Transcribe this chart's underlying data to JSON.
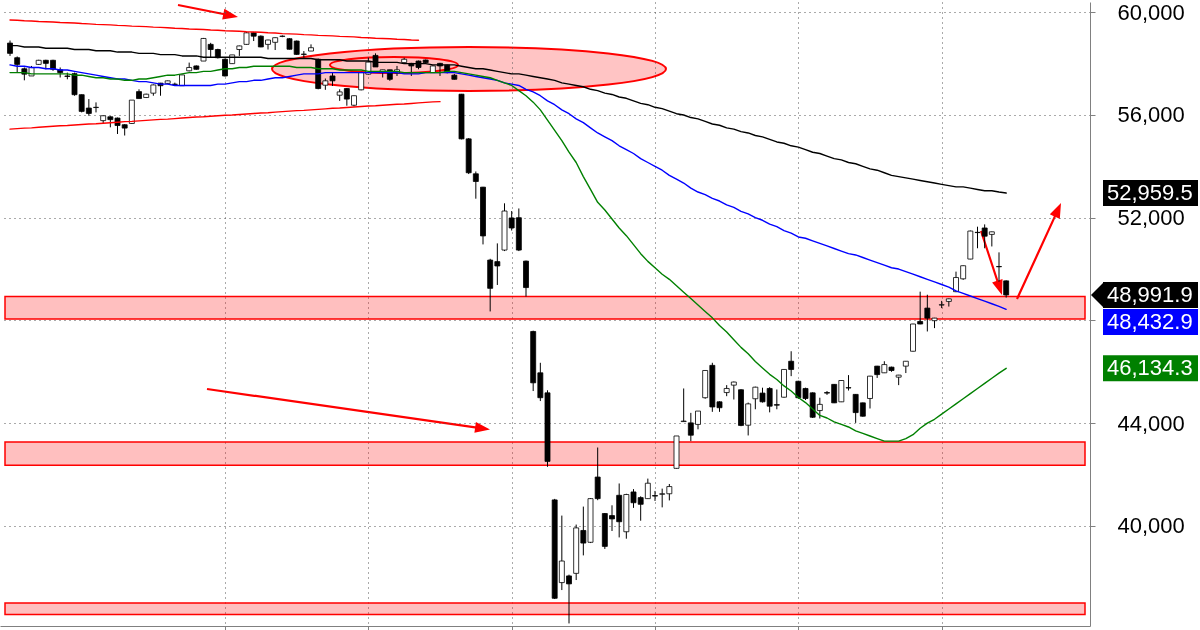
{
  "chart_data": {
    "type": "candlestick",
    "categories": [
      null,
      null,
      null,
      null,
      null,
      null,
      null,
      null,
      null,
      null,
      null,
      null,
      null,
      null,
      null,
      null,
      null,
      null,
      null,
      null,
      null,
      null,
      null,
      null,
      null,
      null,
      null,
      null,
      null,
      null,
      null,
      null,
      null,
      null,
      null,
      null,
      null,
      null,
      null,
      null,
      null,
      null,
      null,
      null,
      null,
      null,
      null,
      null,
      null,
      null,
      null,
      null,
      null,
      null,
      null,
      null,
      null,
      null,
      null,
      null,
      null,
      null,
      null,
      null,
      null,
      null,
      null,
      null,
      null,
      null,
      null,
      null,
      null,
      null,
      null,
      null,
      null,
      null,
      null,
      null,
      null,
      null,
      null,
      null,
      null,
      null,
      null,
      null,
      null,
      null,
      null,
      null,
      null,
      null,
      null,
      null,
      null,
      null,
      null,
      null,
      null,
      null,
      null,
      null,
      null,
      null,
      null,
      null,
      null,
      null,
      null,
      null,
      null,
      null,
      null,
      null,
      null,
      null,
      null,
      null,
      null,
      null,
      null,
      null,
      null,
      null,
      null,
      null,
      null,
      null,
      null,
      null,
      null,
      null,
      null,
      null,
      null,
      null,
      null,
      null
    ],
    "ohlc": [
      [
        58800,
        58900,
        58300,
        58400
      ],
      [
        58230,
        58280,
        57650,
        57970
      ],
      [
        57800,
        57850,
        57350,
        57590
      ],
      [
        57520,
        57910,
        57520,
        57845
      ],
      [
        57970,
        58150,
        57950,
        58130
      ],
      [
        58130,
        58150,
        57780,
        58010
      ],
      [
        58130,
        58150,
        57720,
        57780
      ],
      [
        57760,
        57850,
        57460,
        57650
      ],
      [
        57520,
        57650,
        57390,
        57500
      ],
      [
        57610,
        57650,
        56750,
        56790
      ],
      [
        56790,
        56800,
        56100,
        56140
      ],
      [
        56270,
        56620,
        55970,
        56060
      ],
      [
        56290,
        56490,
        56100,
        56300
      ],
      [
        55780,
        55990,
        55670,
        55970
      ],
      [
        55930,
        55950,
        55520,
        55820
      ],
      [
        55880,
        55900,
        55260,
        55590
      ],
      [
        55620,
        55640,
        55200,
        55490
      ],
      [
        55670,
        56580,
        55650,
        56580
      ],
      [
        56910,
        57000,
        56640,
        56640
      ],
      [
        56680,
        56830,
        56660,
        56810
      ],
      [
        56850,
        57190,
        56750,
        57170
      ],
      [
        57240,
        57250,
        56750,
        57140
      ],
      [
        57230,
        57340,
        57200,
        57330
      ],
      [
        57200,
        57260,
        57150,
        57190
      ],
      [
        57140,
        57570,
        57130,
        57560
      ],
      [
        57720,
        58040,
        57700,
        57850
      ],
      [
        57910,
        57930,
        57760,
        57780
      ],
      [
        58100,
        59000,
        58100,
        58980
      ],
      [
        58750,
        58810,
        58230,
        58550
      ],
      [
        58550,
        58580,
        58200,
        58230
      ],
      [
        58170,
        58200,
        57500,
        57520
      ],
      [
        58000,
        58340,
        57990,
        58340
      ],
      [
        58550,
        58700,
        58300,
        58690
      ],
      [
        58750,
        59230,
        58740,
        59200
      ],
      [
        59200,
        59230,
        58880,
        59070
      ],
      [
        59070,
        59100,
        58640,
        58650
      ],
      [
        58750,
        58930,
        58550,
        58920
      ],
      [
        58830,
        59020,
        58530,
        59010
      ],
      [
        59060,
        59100,
        59030,
        59070
      ],
      [
        58970,
        58990,
        58550,
        58560
      ],
      [
        58880,
        58900,
        58340,
        58360
      ],
      [
        58370,
        58490,
        58230,
        58360
      ],
      [
        58490,
        58750,
        58490,
        58620
      ],
      [
        58170,
        58200,
        57000,
        57030
      ],
      [
        57160,
        57420,
        56980,
        57330
      ],
      [
        57520,
        57650,
        57130,
        57330
      ],
      [
        56770,
        57000,
        56550,
        56900
      ],
      [
        57030,
        57050,
        56360,
        56620
      ],
      [
        56380,
        56760,
        56330,
        56750
      ],
      [
        56980,
        57680,
        56960,
        57650
      ],
      [
        57590,
        58230,
        57570,
        58060
      ],
      [
        58320,
        58400,
        57870,
        57870
      ],
      [
        57680,
        57760,
        57460,
        57760
      ],
      [
        57760,
        57760,
        57330,
        57390
      ],
      [
        57630,
        57910,
        57520,
        57760
      ],
      [
        58040,
        58230,
        58020,
        58170
      ],
      [
        58010,
        58030,
        57520,
        57910
      ],
      [
        58100,
        58120,
        57780,
        57850
      ],
      [
        58140,
        58160,
        58000,
        58040
      ],
      [
        57650,
        57930,
        57640,
        57910
      ],
      [
        58010,
        58030,
        57520,
        57910
      ],
      [
        57940,
        57960,
        57620,
        57650
      ],
      [
        57550,
        57600,
        57380,
        57390
      ],
      [
        56810,
        56820,
        55050,
        55070
      ],
      [
        55070,
        55100,
        53700,
        53750
      ],
      [
        53710,
        53800,
        52740,
        53410
      ],
      [
        53190,
        53200,
        50960,
        51290
      ],
      [
        50350,
        50400,
        48350,
        49250
      ],
      [
        50290,
        51000,
        49380,
        50120
      ],
      [
        50740,
        52560,
        50700,
        52260
      ],
      [
        51990,
        52260,
        51500,
        51600
      ],
      [
        52000,
        52360,
        50700,
        50740
      ],
      [
        50310,
        50330,
        48930,
        49280
      ],
      [
        47570,
        47600,
        45250,
        45570
      ],
      [
        45960,
        46350,
        44860,
        44990
      ],
      [
        45180,
        45280,
        42300,
        42510
      ],
      [
        41010,
        41050,
        37150,
        37180
      ],
      [
        37790,
        40400,
        37500,
        38630
      ],
      [
        38050,
        38100,
        36200,
        37740
      ],
      [
        38150,
        40050,
        37890,
        39920
      ],
      [
        39820,
        40750,
        38850,
        39330
      ],
      [
        39360,
        41080,
        39330,
        41060
      ],
      [
        41900,
        43050,
        41000,
        41060
      ],
      [
        40480,
        40500,
        39100,
        39200
      ],
      [
        40400,
        40800,
        39800,
        40270
      ],
      [
        41190,
        41650,
        39550,
        40160
      ],
      [
        39770,
        41250,
        39500,
        41220
      ],
      [
        41320,
        41430,
        40700,
        40900
      ],
      [
        41100,
        41150,
        40200,
        40840
      ],
      [
        41060,
        41840,
        41050,
        41660
      ],
      [
        41180,
        41360,
        40970,
        41160
      ],
      [
        41230,
        41450,
        40720,
        41250
      ],
      [
        41250,
        41630,
        40990,
        41530
      ],
      [
        42240,
        43500,
        42230,
        43500
      ],
      [
        44060,
        45350,
        44050,
        44080
      ],
      [
        44010,
        44400,
        43300,
        43530
      ],
      [
        43950,
        44470,
        43760,
        44470
      ],
      [
        44990,
        46050,
        44950,
        46050
      ],
      [
        46250,
        46350,
        44440,
        44630
      ],
      [
        44830,
        44850,
        44440,
        44600
      ],
      [
        45190,
        45480,
        45050,
        45350
      ],
      [
        45480,
        45620,
        44920,
        45600
      ],
      [
        45300,
        45320,
        43880,
        43910
      ],
      [
        43920,
        44800,
        43520,
        44750
      ],
      [
        44950,
        45420,
        44540,
        45400
      ],
      [
        45170,
        45380,
        44800,
        44830
      ],
      [
        45350,
        45400,
        44420,
        44660
      ],
      [
        44720,
        45310,
        44540,
        44700
      ],
      [
        45010,
        46100,
        44990,
        46090
      ],
      [
        46410,
        46800,
        45830,
        46090
      ],
      [
        45630,
        45650,
        44950,
        44990
      ],
      [
        45350,
        45380,
        44900,
        44960
      ],
      [
        45180,
        45200,
        44200,
        44230
      ],
      [
        44490,
        44990,
        44180,
        44730
      ],
      [
        45190,
        45250,
        45100,
        45170
      ],
      [
        45510,
        45520,
        44780,
        44790
      ],
      [
        44830,
        45670,
        44820,
        45660
      ],
      [
        45380,
        45870,
        45270,
        45370
      ],
      [
        45120,
        45130,
        44010,
        44410
      ],
      [
        44790,
        44800,
        44250,
        44270
      ],
      [
        44960,
        45840,
        44570,
        45830
      ],
      [
        46220,
        46230,
        45760,
        45890
      ],
      [
        45960,
        46410,
        45950,
        46280
      ],
      [
        46180,
        46200,
        46000,
        46050
      ],
      [
        45790,
        45880,
        45480,
        45870
      ],
      [
        46220,
        46420,
        45950,
        46410
      ],
      [
        46800,
        47870,
        46790,
        47860
      ],
      [
        47960,
        49120,
        47850,
        47860
      ],
      [
        48480,
        49000,
        47570,
        48090
      ],
      [
        47990,
        48100,
        47700,
        48090
      ],
      [
        48600,
        48760,
        48480,
        48610
      ],
      [
        48740,
        48850,
        48540,
        48840
      ],
      [
        49120,
        49900,
        49100,
        49670
      ],
      [
        49620,
        50140,
        49580,
        50130
      ],
      [
        50390,
        51500,
        50380,
        51480
      ],
      [
        51430,
        51650,
        50810,
        51420
      ],
      [
        51600,
        51740,
        50810,
        51280
      ],
      [
        51350,
        51460,
        50880,
        51450
      ],
      [
        50100,
        50650,
        49510,
        50090
      ],
      [
        49540,
        49560,
        48890,
        48991.9
      ]
    ],
    "value_labels": [
      null,
      null,
      null,
      null,
      null,
      null,
      null,
      null,
      null,
      null,
      null,
      null,
      null,
      null,
      null,
      null,
      null,
      null,
      null,
      null,
      null,
      null,
      null,
      null,
      null,
      null,
      null,
      null,
      null,
      null,
      null,
      null,
      null,
      null,
      null,
      null,
      null,
      null,
      null,
      null,
      null,
      null,
      null,
      null,
      null,
      null,
      null,
      null,
      null,
      null,
      null,
      null,
      null,
      null,
      null,
      null,
      null,
      null,
      null,
      null,
      null,
      null,
      null,
      null,
      null,
      null,
      null,
      null,
      null,
      null,
      null,
      null,
      null,
      null,
      null,
      null,
      null,
      null,
      null,
      null,
      null,
      null,
      null,
      null,
      null,
      null,
      null,
      null,
      null,
      null,
      null,
      null,
      null,
      null,
      null,
      null,
      null,
      null,
      null,
      null,
      null,
      null,
      null,
      null,
      null,
      null,
      null,
      null,
      null,
      null,
      null,
      null,
      null,
      null,
      null,
      null,
      null,
      null,
      null,
      null,
      null,
      null,
      null,
      null,
      null,
      null,
      null,
      null,
      null,
      null,
      null,
      null,
      null,
      null,
      null,
      null,
      null,
      null,
      null,
      "48,991.9"
    ],
    "series": [
      {
        "type": "line",
        "color": "#000000",
        "values": [
          58700,
          58700,
          58650,
          58650,
          58650,
          58600,
          58600,
          58600,
          58600,
          58550,
          58550,
          58550,
          58500,
          58500,
          58500,
          58450,
          58450,
          58450,
          58400,
          58400,
          58400,
          58350,
          58350,
          58350,
          58300,
          58300,
          58300,
          58250,
          58250,
          58250,
          58250,
          58250,
          58250,
          58250,
          58250,
          58250,
          58200,
          58200,
          58200,
          58200,
          58200,
          58200,
          58200,
          58150,
          58150,
          58150,
          58150,
          58100,
          58100,
          58100,
          58100,
          58050,
          58050,
          58050,
          58050,
          58000,
          58000,
          58000,
          58000,
          57950,
          57950,
          57950,
          57950,
          57900,
          57850,
          57800,
          57800,
          57750,
          57700,
          57650,
          57600,
          57600,
          57550,
          57500,
          57450,
          57400,
          57350,
          57250,
          57200,
          57150,
          57100,
          57000,
          56950,
          56850,
          56800,
          56700,
          56650,
          56550,
          56450,
          56400,
          56300,
          56250,
          56150,
          56050,
          56000,
          55900,
          55850,
          55750,
          55650,
          55600,
          55500,
          55450,
          55350,
          55300,
          55200,
          55150,
          55050,
          54950,
          54900,
          54800,
          54750,
          54650,
          54550,
          54500,
          54400,
          54300,
          54250,
          54150,
          54100,
          54000,
          53900,
          53850,
          53750,
          53650,
          53600,
          53550,
          53500,
          53450,
          53400,
          53350,
          53300,
          53250,
          53200,
          53200,
          53150,
          53100,
          53050,
          53050,
          53000,
          52959.5
        ]
      },
      {
        "type": "line",
        "color": "#0000ff",
        "values": [
          57950,
          57900,
          57900,
          57850,
          57850,
          57800,
          57800,
          57750,
          57750,
          57700,
          57650,
          57600,
          57550,
          57500,
          57450,
          57400,
          57400,
          57350,
          57300,
          57300,
          57250,
          57200,
          57200,
          57150,
          57150,
          57150,
          57150,
          57150,
          57150,
          57200,
          57200,
          57250,
          57300,
          57300,
          57350,
          57350,
          57400,
          57450,
          57450,
          57500,
          57550,
          57600,
          57600,
          57600,
          57650,
          57650,
          57650,
          57650,
          57650,
          57650,
          57650,
          57650,
          57650,
          57650,
          57650,
          57600,
          57600,
          57600,
          57650,
          57650,
          57650,
          57650,
          57650,
          57600,
          57550,
          57500,
          57450,
          57400,
          57350,
          57250,
          57200,
          57150,
          57000,
          56900,
          56750,
          56550,
          56400,
          56200,
          56050,
          55850,
          55700,
          55500,
          55300,
          55150,
          55000,
          54800,
          54650,
          54500,
          54300,
          54150,
          54000,
          53850,
          53650,
          53500,
          53350,
          53150,
          53000,
          52900,
          52750,
          52650,
          52500,
          52400,
          52250,
          52150,
          52000,
          51900,
          51750,
          51650,
          51500,
          51400,
          51250,
          51200,
          51100,
          51000,
          50900,
          50800,
          50700,
          50600,
          50550,
          50450,
          50350,
          50250,
          50150,
          50050,
          50000,
          49900,
          49800,
          49700,
          49600,
          49500,
          49400,
          49300,
          49150,
          49050,
          48950,
          48850,
          48750,
          48650,
          48550,
          48432.9
        ]
      },
      {
        "type": "line",
        "color": "#008000",
        "values": [
          57650,
          57650,
          57650,
          57600,
          57600,
          57600,
          57600,
          57600,
          57600,
          57550,
          57550,
          57500,
          57450,
          57450,
          57400,
          57400,
          57350,
          57350,
          57400,
          57400,
          57450,
          57500,
          57550,
          57550,
          57600,
          57650,
          57650,
          57700,
          57700,
          57750,
          57800,
          57800,
          57850,
          57850,
          57900,
          57900,
          57900,
          57900,
          57900,
          57900,
          57850,
          57850,
          57850,
          57800,
          57800,
          57800,
          57750,
          57750,
          57750,
          57750,
          57700,
          57700,
          57700,
          57700,
          57700,
          57650,
          57650,
          57650,
          57650,
          57650,
          57650,
          57700,
          57700,
          57650,
          57600,
          57550,
          57500,
          57450,
          57350,
          57250,
          57150,
          56950,
          56750,
          56500,
          56200,
          55800,
          55400,
          55000,
          54550,
          54150,
          53600,
          53100,
          52600,
          52300,
          51950,
          51600,
          51300,
          50950,
          50600,
          50300,
          50050,
          49800,
          49600,
          49350,
          49100,
          48850,
          48600,
          48350,
          48100,
          47800,
          47550,
          47250,
          46950,
          46700,
          46400,
          46150,
          45900,
          45700,
          45450,
          45250,
          45000,
          44800,
          44550,
          44300,
          44200,
          44050,
          43950,
          43850,
          43700,
          43600,
          43500,
          43400,
          43300,
          43300,
          43300,
          43400,
          43550,
          43800,
          44000,
          44150,
          44350,
          44550,
          44750,
          44950,
          45150,
          45350,
          45550,
          45750,
          45950,
          46134.3
        ]
      },
      {
        "type": "line",
        "color": "#ff0000",
        "values": [
          59700,
          59690,
          59670,
          59660,
          59640,
          59630,
          59620,
          59600,
          59590,
          59580,
          59560,
          59550,
          59530,
          59520,
          59510,
          59490,
          59480,
          59460,
          59450,
          59440,
          59420,
          59410,
          59400,
          59380,
          59370,
          59350,
          59340,
          59330,
          59310,
          59300,
          59280,
          59270,
          59260,
          59240,
          59230,
          59220,
          59200,
          59190,
          59170,
          59160,
          59150,
          59130,
          59120,
          59100,
          59090,
          59080,
          59060,
          59050,
          59040,
          59020,
          59010,
          58990,
          58980,
          58970,
          58950,
          58940,
          58920,
          58910,
          null,
          null,
          null,
          null,
          null,
          null,
          null,
          null,
          null,
          null,
          null,
          null,
          null,
          null,
          null,
          null,
          null,
          null,
          null,
          null,
          null,
          null,
          null,
          null,
          null,
          null,
          null,
          null,
          null,
          null,
          null,
          null,
          null,
          null,
          null,
          null,
          null,
          null,
          null,
          null,
          null,
          null,
          null,
          null,
          null,
          null,
          null,
          null,
          null,
          null,
          null,
          null,
          null,
          null,
          null,
          null,
          null,
          null,
          null,
          null,
          null,
          null,
          null,
          null,
          null,
          null,
          null,
          null,
          null,
          null,
          null,
          null,
          null,
          null,
          null,
          null,
          null,
          null,
          null,
          null,
          null,
          null
        ]
      },
      {
        "type": "line",
        "color": "#ff0000",
        "values": [
          55450,
          55470,
          55490,
          55500,
          55520,
          55540,
          55560,
          55580,
          55590,
          55610,
          55630,
          55650,
          55660,
          55680,
          55700,
          55720,
          55740,
          55750,
          55770,
          55790,
          55810,
          55830,
          55840,
          55860,
          55880,
          55900,
          55920,
          55930,
          55950,
          55970,
          55990,
          56000,
          56020,
          56040,
          56060,
          56080,
          56090,
          56110,
          56130,
          56150,
          56170,
          56180,
          56200,
          56220,
          56240,
          56260,
          56270,
          56290,
          56310,
          56330,
          56350,
          56360,
          56380,
          56400,
          56420,
          56430,
          56450,
          56470,
          56490,
          56510,
          56520,
          null,
          null,
          null,
          null,
          null,
          null,
          null,
          null,
          null,
          null,
          null,
          null,
          null,
          null,
          null,
          null,
          null,
          null,
          null,
          null,
          null,
          null,
          null,
          null,
          null,
          null,
          null,
          null,
          null,
          null,
          null,
          null,
          null,
          null,
          null,
          null,
          null,
          null,
          null,
          null,
          null,
          null,
          null,
          null,
          null,
          null,
          null,
          null,
          null,
          null,
          null,
          null,
          null,
          null,
          null,
          null,
          null,
          null,
          null,
          null,
          null,
          null,
          null,
          null,
          null,
          null,
          null,
          null,
          null,
          null,
          null,
          null,
          null,
          null,
          null,
          null,
          null,
          null,
          null
        ]
      }
    ],
    "ylim": [
      36100,
      60400
    ],
    "yticks": [
      {
        "value": 40000,
        "label": "40,000"
      },
      {
        "value": 44000,
        "label": "44,000"
      },
      {
        "value": 48000,
        "label": null
      },
      {
        "value": 52000,
        "label": "52,000"
      },
      {
        "value": 56000,
        "label": "56,000"
      },
      {
        "value": 60000,
        "label": "60,000"
      }
    ],
    "grid": true,
    "bands": [
      {
        "axis": "y",
        "from": 48060,
        "to": 48930,
        "color": "#ff0000"
      },
      {
        "axis": "y",
        "from": 42360,
        "to": 43270,
        "color": "#ff0000"
      },
      {
        "axis": "y",
        "from": 36550,
        "to": 37000,
        "color": "#ff0000"
      }
    ],
    "annotations": [
      "52,959.5",
      "48,432.9",
      "46,134.3"
    ]
  }
}
